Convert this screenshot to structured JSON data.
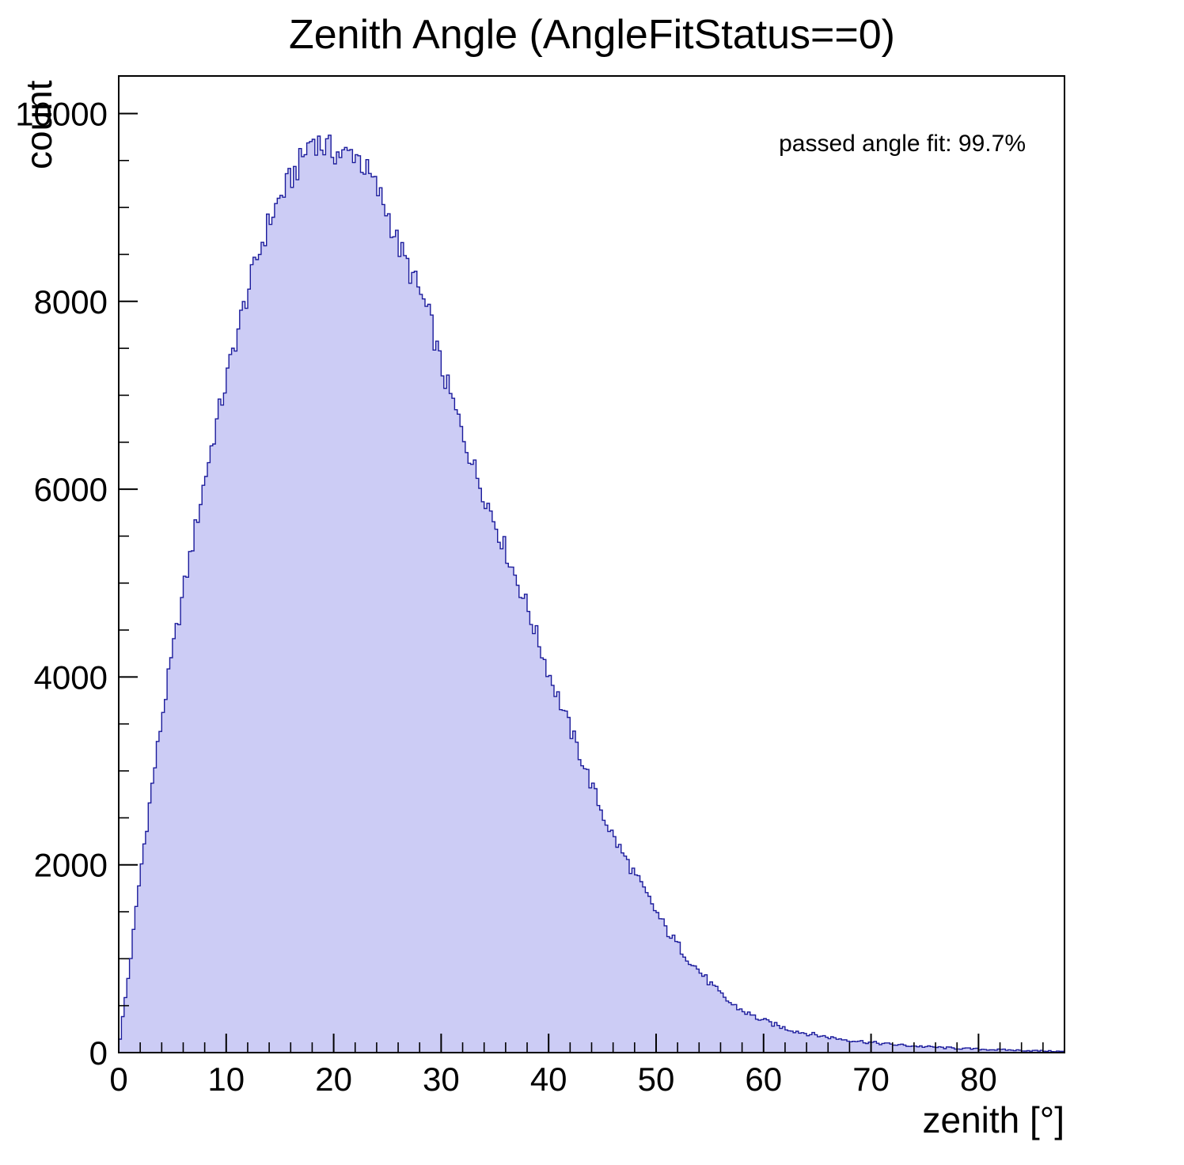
{
  "chart": {
    "title": "Zenith Angle (AngleFitStatus==0)",
    "y_axis_label": "count",
    "x_axis_label": "zenith [°]",
    "annotation": "passed angle fit: 99.7%"
  },
  "chart_data": {
    "type": "bar",
    "title": "Zenith Angle (AngleFitStatus==0)",
    "xlabel": "zenith [°]",
    "ylabel": "count",
    "annotation": "passed angle fit: 99.7%",
    "xlim": [
      0,
      88
    ],
    "ylim": [
      0,
      10400
    ],
    "x_ticks": [
      0,
      10,
      20,
      30,
      40,
      50,
      60,
      70,
      80
    ],
    "y_ticks": [
      0,
      2000,
      4000,
      6000,
      8000,
      10000
    ],
    "x_minor_step": 2,
    "y_minor_step": 500,
    "grid": false,
    "legend_position": "none",
    "fill_color": "#ccccf5",
    "line_color": "#1c1c9c",
    "frame_color": "#000000",
    "x": [
      0,
      1,
      2,
      3,
      4,
      5,
      6,
      7,
      8,
      9,
      10,
      11,
      12,
      13,
      14,
      15,
      16,
      17,
      18,
      19,
      20,
      21,
      22,
      23,
      24,
      25,
      26,
      27,
      28,
      29,
      30,
      31,
      32,
      33,
      34,
      35,
      36,
      37,
      38,
      39,
      40,
      41,
      42,
      43,
      44,
      45,
      46,
      47,
      48,
      49,
      50,
      51,
      52,
      53,
      54,
      55,
      56,
      57,
      58,
      59,
      60,
      61,
      62,
      63,
      64,
      65,
      66,
      67,
      68,
      69,
      70,
      71,
      72,
      73,
      74,
      75,
      76,
      77,
      78,
      79,
      80,
      81,
      82,
      83,
      84,
      85,
      86,
      87,
      88
    ],
    "values": [
      50,
      900,
      1900,
      2750,
      3550,
      4250,
      4900,
      5500,
      6100,
      6650,
      7150,
      7650,
      8100,
      8500,
      8850,
      9100,
      9300,
      9500,
      9750,
      9650,
      9600,
      9550,
      9600,
      9400,
      9200,
      8950,
      8600,
      8350,
      8100,
      7800,
      7300,
      6950,
      6600,
      6250,
      5950,
      5650,
      5350,
      5050,
      4750,
      4400,
      4050,
      3750,
      3450,
      3150,
      2850,
      2550,
      2300,
      2100,
      1900,
      1700,
      1500,
      1300,
      1150,
      1000,
      870,
      740,
      620,
      520,
      450,
      390,
      340,
      300,
      260,
      230,
      205,
      185,
      165,
      148,
      133,
      120,
      108,
      97,
      87,
      78,
      70,
      63,
      57,
      51,
      46,
      41,
      37,
      33,
      30,
      27,
      24,
      21,
      18,
      15,
      12
    ]
  }
}
